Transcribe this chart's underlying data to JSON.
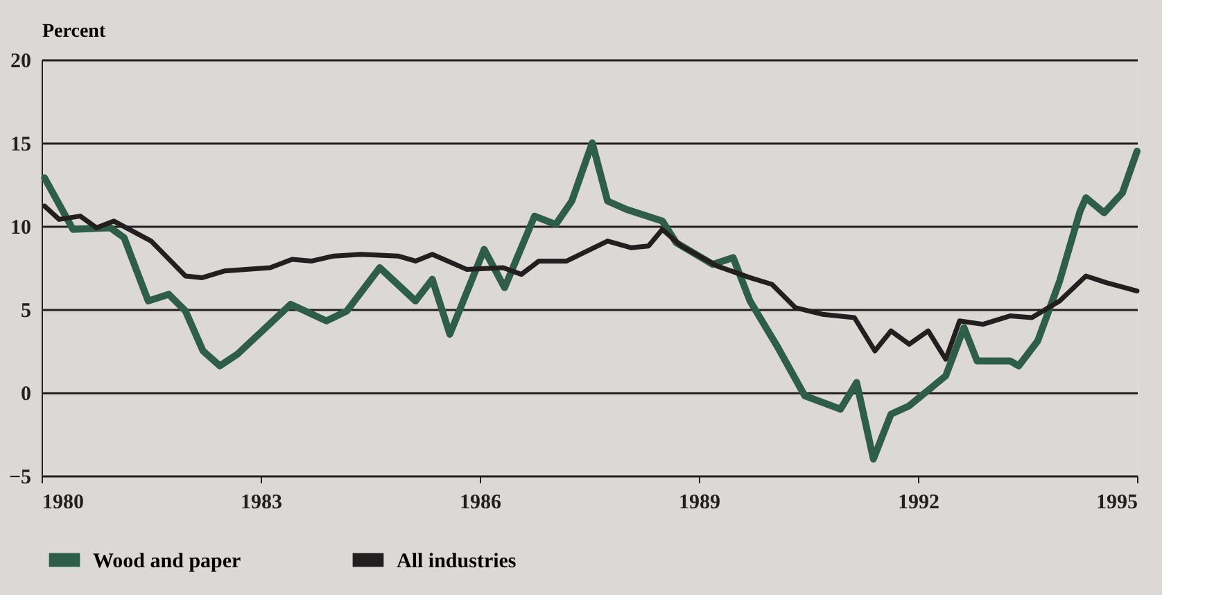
{
  "chart_data": {
    "type": "line",
    "ylabel": "Percent",
    "xlim": [
      1980,
      1995
    ],
    "xticks": [
      1980,
      1983,
      1986,
      1989,
      1992,
      1995
    ],
    "ylim": [
      -5,
      20
    ],
    "yticks": [
      -5,
      0,
      5,
      10,
      15,
      20
    ],
    "grid": "y",
    "legend": "bottom",
    "line_style": "solid",
    "series": [
      {
        "name": "Wood and paper",
        "color": "#2e5e4a",
        "x": [
          1980.04,
          1980.43,
          1980.94,
          1981.13,
          1981.46,
          1981.74,
          1981.97,
          1982.21,
          1982.44,
          1982.68,
          1983.41,
          1983.9,
          1984.18,
          1984.63,
          1985.12,
          1985.35,
          1985.59,
          1986.06,
          1986.34,
          1986.75,
          1987.04,
          1987.26,
          1987.54,
          1987.75,
          1988.01,
          1988.5,
          1988.69,
          1989.19,
          1989.47,
          1989.7,
          1990.07,
          1990.45,
          1990.94,
          1991.16,
          1991.39,
          1991.63,
          1991.88,
          1992.38,
          1992.63,
          1992.81,
          1993.26,
          1993.38,
          1993.64,
          1993.94,
          1994.22,
          1994.3,
          1994.55,
          1994.8,
          1995.0
        ],
        "values": [
          12.9,
          9.8,
          9.9,
          9.3,
          5.5,
          5.9,
          4.9,
          2.5,
          1.6,
          2.3,
          5.3,
          4.3,
          4.9,
          7.5,
          5.5,
          6.8,
          3.5,
          8.6,
          6.3,
          10.6,
          10.1,
          11.5,
          15.0,
          11.5,
          11.0,
          10.3,
          9.0,
          7.7,
          8.1,
          5.5,
          2.8,
          -0.2,
          -1.0,
          0.6,
          -4.0,
          -1.3,
          -0.8,
          1.0,
          3.9,
          1.9,
          1.9,
          1.6,
          3.1,
          6.7,
          10.9,
          11.7,
          10.8,
          12.0,
          14.5
        ]
      },
      {
        "name": "All industries",
        "color": "#231f20",
        "x": [
          1980.04,
          1980.24,
          1980.53,
          1980.75,
          1980.99,
          1981.5,
          1981.97,
          1982.2,
          1982.5,
          1983.13,
          1983.43,
          1983.7,
          1984.0,
          1984.37,
          1984.88,
          1985.12,
          1985.35,
          1985.82,
          1986.32,
          1986.57,
          1986.81,
          1987.19,
          1987.75,
          1988.07,
          1988.31,
          1988.5,
          1988.76,
          1989.25,
          1989.7,
          1990.0,
          1990.32,
          1990.69,
          1991.13,
          1991.41,
          1991.63,
          1991.88,
          1992.14,
          1992.38,
          1992.57,
          1992.89,
          1993.26,
          1993.56,
          1993.94,
          1994.3,
          1994.58,
          1995.0
        ],
        "values": [
          11.2,
          10.4,
          10.6,
          9.9,
          10.3,
          9.1,
          7.0,
          6.9,
          7.3,
          7.5,
          8.0,
          7.9,
          8.2,
          8.3,
          8.2,
          7.9,
          8.3,
          7.4,
          7.5,
          7.1,
          7.9,
          7.9,
          9.1,
          8.7,
          8.8,
          9.8,
          8.8,
          7.6,
          6.9,
          6.5,
          5.1,
          4.7,
          4.5,
          2.5,
          3.7,
          2.9,
          3.7,
          2.0,
          4.3,
          4.1,
          4.6,
          4.5,
          5.5,
          7.0,
          6.6,
          6.1
        ]
      }
    ]
  }
}
